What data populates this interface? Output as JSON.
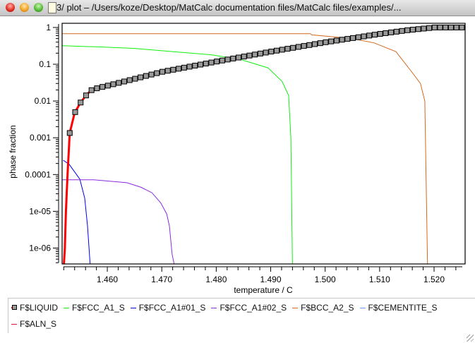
{
  "window": {
    "title": "3/ plot – /Users/koze/Desktop/MatCalc documentation files/MatCalc files/examples/..."
  },
  "chart_data": {
    "type": "line",
    "xlabel": "temperature / C",
    "ylabel": "phase fraction",
    "xlim": [
      1.4517,
      1.5257
    ],
    "ylim": [
      3.7e-07,
      1.3
    ],
    "yscale": "log",
    "xticks": [
      "1.460",
      "1.470",
      "1.480",
      "1.490",
      "1.500",
      "1.510",
      "1.520"
    ],
    "xtick_values": [
      1.46,
      1.47,
      1.48,
      1.49,
      1.5,
      1.51,
      1.52
    ],
    "yticks": [
      "1",
      "0.1",
      "0.01",
      "0.001",
      "0.0001",
      "1e-05",
      "1e-06"
    ],
    "ytick_values": [
      1,
      0.1,
      0.01,
      0.001,
      0.0001,
      1e-05,
      1e-06
    ],
    "legend_placement": "bottom",
    "series": [
      {
        "name": "F$LIQUID",
        "color": "#ff0000",
        "width": 3,
        "marker": "square",
        "marker_step": 0.001,
        "marker_start": 1.4531,
        "points": [
          [
            1.452,
            3e-07
          ],
          [
            1.4522,
            1e-06
          ],
          [
            1.4524,
            1e-05
          ],
          [
            1.4527,
            0.0001
          ],
          [
            1.4531,
            0.00135
          ],
          [
            1.454,
            0.0047
          ],
          [
            1.455,
            0.0087
          ],
          [
            1.456,
            0.0137
          ],
          [
            1.457,
            0.0195
          ],
          [
            1.458,
            0.022
          ],
          [
            1.459,
            0.024
          ],
          [
            1.46,
            0.026
          ],
          [
            1.465,
            0.04
          ],
          [
            1.47,
            0.062
          ],
          [
            1.48,
            0.118
          ],
          [
            1.49,
            0.22
          ],
          [
            1.5,
            0.395
          ],
          [
            1.51,
            0.667
          ],
          [
            1.515,
            0.84
          ],
          [
            1.5201,
            1
          ],
          [
            1.5257,
            1
          ]
        ]
      },
      {
        "name": "F$FCC_A1_S",
        "color": "#11ee11",
        "width": 1,
        "points": [
          [
            1.4517,
            0.32
          ],
          [
            1.46,
            0.29
          ],
          [
            1.465,
            0.27
          ],
          [
            1.4792,
            0.18
          ],
          [
            1.4844,
            0.136
          ],
          [
            1.4895,
            0.08
          ],
          [
            1.4921,
            0.034
          ],
          [
            1.4933,
            0.014
          ],
          [
            1.4937,
            0.001
          ],
          [
            1.494,
            3e-07
          ]
        ]
      },
      {
        "name": "F$FCC_A1#01_S",
        "color": "#0000ee",
        "width": 1,
        "points": [
          [
            1.4519,
            0.000245
          ],
          [
            1.453,
            0.00019
          ],
          [
            1.45495,
            7.5e-05
          ],
          [
            1.45585,
            2.3e-05
          ],
          [
            1.45637,
            4e-06
          ],
          [
            1.45689,
            3e-07
          ]
        ]
      },
      {
        "name": "F$FCC_A1#02_S",
        "color": "#8a2be2",
        "width": 1,
        "points": [
          [
            1.4517,
            7.2e-05
          ],
          [
            1.4575,
            7.2e-05
          ],
          [
            1.4636,
            6e-05
          ],
          [
            1.4662,
            4.5e-05
          ],
          [
            1.4682,
            3.2e-05
          ],
          [
            1.4698,
            1.7e-05
          ],
          [
            1.4709,
            8.5e-06
          ],
          [
            1.4714,
            4e-06
          ],
          [
            1.4719,
            6.7e-07
          ],
          [
            1.4724,
            3e-07
          ]
        ]
      },
      {
        "name": "F$BCC_A2_S",
        "color": "#d2691e",
        "width": 1,
        "points": [
          [
            1.4517,
            0.68
          ],
          [
            1.4973,
            0.68
          ],
          [
            1.4975,
            0.63
          ],
          [
            1.505,
            0.5
          ],
          [
            1.509,
            0.38
          ],
          [
            1.513,
            0.22
          ],
          [
            1.516,
            0.059
          ],
          [
            1.5175,
            0.03
          ],
          [
            1.5183,
            0.01
          ],
          [
            1.5188,
            3e-07
          ]
        ]
      },
      {
        "name": "F$CEMENTITE_S",
        "color": "#6699ff",
        "width": 1,
        "points": []
      },
      {
        "name": "F$ALN_S",
        "color": "#e0103a",
        "width": 1,
        "points": []
      }
    ]
  }
}
